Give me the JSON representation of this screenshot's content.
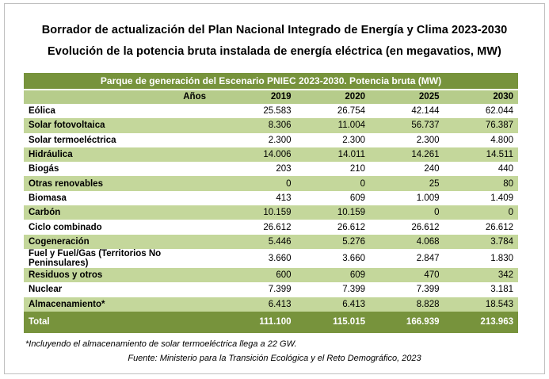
{
  "title_line1": "Borrador de actualización del Plan Nacional Integrado de Energía y Clima 2023-2030",
  "title_line2": "Evolución de la potencia bruta instalada de energía eléctrica (en megavatios, MW)",
  "table": {
    "caption": "Parque de generación del Escenario PNIEC 2023-2030. Potencia bruta (MW)",
    "header_label": "Años",
    "years": [
      "2019",
      "2020",
      "2025",
      "2030"
    ],
    "rows": [
      {
        "label": "Eólica",
        "values": [
          "25.583",
          "26.754",
          "42.144",
          "62.044"
        ]
      },
      {
        "label": "Solar fotovoltaica",
        "values": [
          "8.306",
          "11.004",
          "56.737",
          "76.387"
        ]
      },
      {
        "label": "Solar termoeléctrica",
        "values": [
          "2.300",
          "2.300",
          "2.300",
          "4.800"
        ]
      },
      {
        "label": "Hidráulica",
        "values": [
          "14.006",
          "14.011",
          "14.261",
          "14.511"
        ]
      },
      {
        "label": "Biogás",
        "values": [
          "203",
          "210",
          "240",
          "440"
        ]
      },
      {
        "label": "Otras renovables",
        "values": [
          "0",
          "0",
          "25",
          "80"
        ]
      },
      {
        "label": "Biomasa",
        "values": [
          "413",
          "609",
          "1.009",
          "1.409"
        ]
      },
      {
        "label": "Carbón",
        "values": [
          "10.159",
          "10.159",
          "0",
          "0"
        ]
      },
      {
        "label": "Ciclo combinado",
        "values": [
          "26.612",
          "26.612",
          "26.612",
          "26.612"
        ]
      },
      {
        "label": "Cogeneración",
        "values": [
          "5.446",
          "5.276",
          "4.068",
          "3.784"
        ]
      },
      {
        "label": "Fuel y Fuel/Gas (Territorios No Peninsulares)",
        "values": [
          "3.660",
          "3.660",
          "2.847",
          "1.830"
        ]
      },
      {
        "label": "Residuos y otros",
        "values": [
          "600",
          "609",
          "470",
          "342"
        ]
      },
      {
        "label": "Nuclear",
        "values": [
          "7.399",
          "7.399",
          "7.399",
          "3.181"
        ]
      },
      {
        "label": "Almacenamiento*",
        "values": [
          "6.413",
          "6.413",
          "8.828",
          "18.543"
        ]
      }
    ],
    "total": {
      "label": "Total",
      "values": [
        "111.100",
        "115.015",
        "166.939",
        "213.963"
      ]
    }
  },
  "footnote": "*Incluyendo el almacenamiento de solar termoeléctrica llega a 22 GW.",
  "source": "Fuente: Ministerio para la Transición Ecológica y el Reto Demográfico, 2023",
  "colors": {
    "header_dark": "#77933c",
    "header_light": "#b6cc8b",
    "row_alt": "#c4d79b"
  }
}
